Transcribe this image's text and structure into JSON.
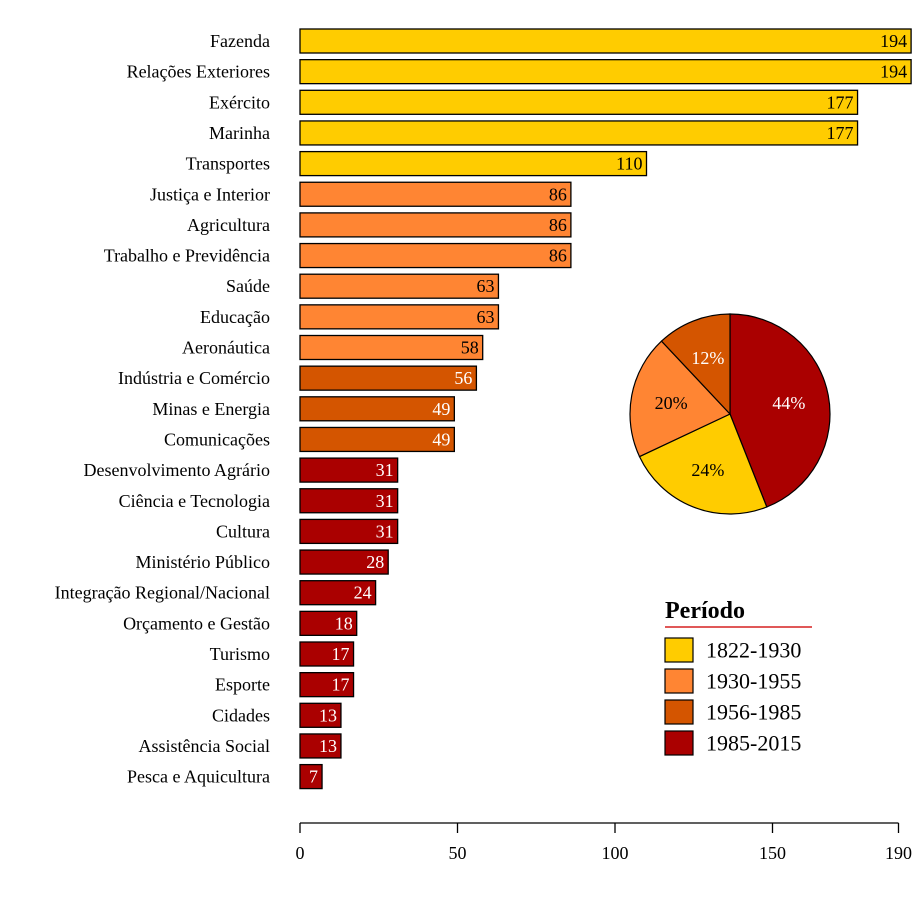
{
  "chart_data": [
    {
      "type": "bar",
      "orientation": "horizontal",
      "categories": [
        "Fazenda",
        "Relações Exteriores",
        "Exército",
        "Marinha",
        "Transportes",
        "Justiça e Interior",
        "Agricultura",
        "Trabalho e Previdência",
        "Saúde",
        "Educação",
        "Aeronáutica",
        "Indústria e Comércio",
        "Minas e Energia",
        "Comunicações",
        "Desenvolvimento Agrário",
        "Ciência e Tecnologia",
        "Cultura",
        "Ministério Público",
        "Integração Regional/Nacional",
        "Orçamento e Gestão",
        "Turismo",
        "Esporte",
        "Cidades",
        "Assistência Social",
        "Pesca e Aquicultura"
      ],
      "values": [
        194,
        194,
        177,
        177,
        110,
        86,
        86,
        86,
        63,
        63,
        58,
        56,
        49,
        49,
        31,
        31,
        31,
        28,
        24,
        18,
        17,
        17,
        13,
        13,
        7
      ],
      "period_index": [
        0,
        0,
        0,
        0,
        0,
        1,
        1,
        1,
        1,
        1,
        1,
        2,
        2,
        2,
        3,
        3,
        3,
        3,
        3,
        3,
        3,
        3,
        3,
        3,
        3
      ],
      "value_label_colors": [
        "#000000",
        "#000000",
        "#000000",
        "#000000",
        "#000000",
        "#000000",
        "#000000",
        "#000000",
        "#000000",
        "#000000",
        "#000000",
        "#ffffff",
        "#ffffff",
        "#ffffff",
        "#ffffff",
        "#ffffff",
        "#ffffff",
        "#ffffff",
        "#ffffff",
        "#ffffff",
        "#ffffff",
        "#ffffff",
        "#ffffff",
        "#ffffff",
        "#ffffff"
      ],
      "xticks": [
        0,
        50,
        100,
        150,
        190
      ],
      "xlim": [
        0,
        190
      ],
      "title": "",
      "xlabel": "",
      "ylabel": ""
    },
    {
      "type": "pie",
      "labels": [
        "1822-1930",
        "1930-1955",
        "1956-1985",
        "1985-2015"
      ],
      "values": [
        24,
        20,
        12,
        44
      ],
      "value_labels": [
        "24%",
        "20%",
        "12%",
        "44%"
      ],
      "label_colors": [
        "#000000",
        "#000000",
        "#ffffff",
        "#ffffff"
      ],
      "start": "top",
      "direction": "clockwise",
      "order": [
        3,
        0,
        1,
        2
      ]
    }
  ],
  "legend": {
    "title": "Período",
    "title_underline_color": "#d62020",
    "items": [
      "1822-1930",
      "1930-1955",
      "1956-1985",
      "1985-2015"
    ],
    "placement": "bottom-right"
  },
  "colors": {
    "periods": [
      "#ffcc00",
      "#ff8533",
      "#d45500",
      "#aa0000"
    ],
    "stroke": "#000000"
  }
}
